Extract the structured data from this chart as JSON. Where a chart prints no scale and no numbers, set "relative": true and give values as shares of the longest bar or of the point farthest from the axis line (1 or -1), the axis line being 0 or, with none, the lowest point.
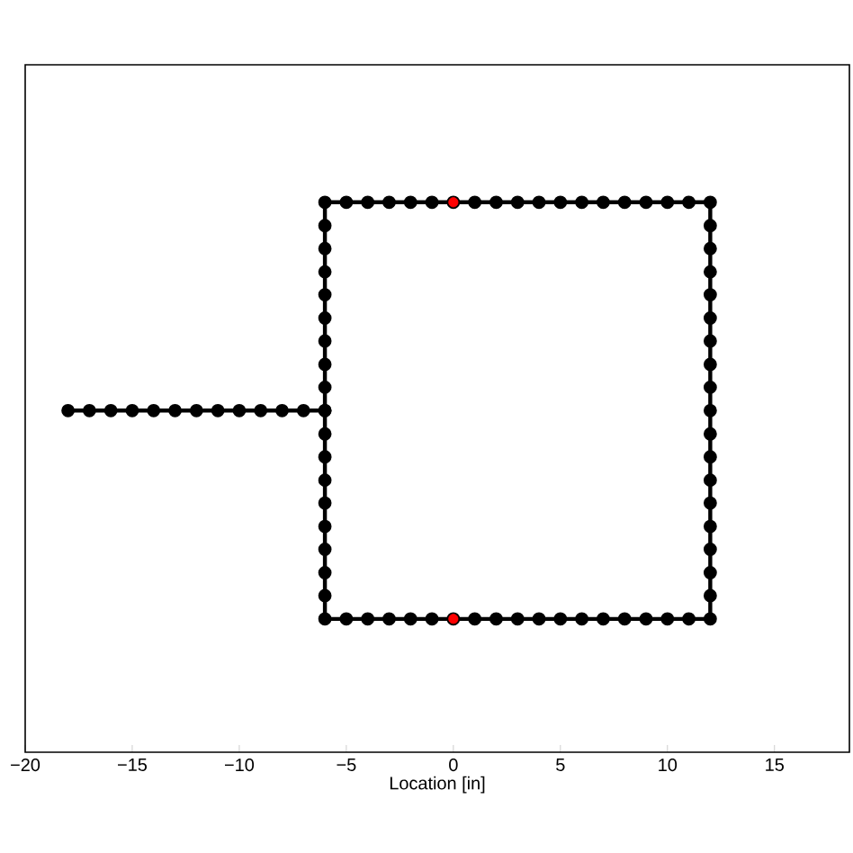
{
  "chart_data": {
    "type": "line",
    "xlabel": "Location [in]",
    "relative": true,
    "xlim": [
      -20,
      18.5
    ],
    "xticks": [
      {
        "value": -20,
        "label": "−20"
      },
      {
        "value": -15,
        "label": "−15"
      },
      {
        "value": -10,
        "label": "−10"
      },
      {
        "value": -5,
        "label": "−5"
      },
      0,
      5,
      10,
      15
    ],
    "marker": "circle",
    "line_style": "solid",
    "series": [
      {
        "color": "#000000",
        "x": [
          -18,
          -17,
          -16,
          -15,
          -14,
          -13,
          -12,
          -11,
          -10,
          -9,
          -8,
          -7,
          -6,
          -6,
          -6,
          -6,
          -6,
          -6,
          -6,
          -6,
          -6,
          -6,
          -5,
          -4,
          -3,
          -2,
          -1,
          0,
          1,
          2,
          3,
          4,
          5,
          6,
          7,
          8,
          9,
          10,
          11,
          12,
          12,
          12,
          12,
          12,
          12,
          12,
          12,
          12,
          12,
          12,
          12,
          12,
          12,
          12,
          12,
          12,
          12,
          12,
          11,
          10,
          9,
          8,
          7,
          6,
          5,
          4,
          3,
          2,
          1,
          0,
          -1,
          -2,
          -3,
          -4,
          -5,
          -6,
          -6,
          -6,
          -6,
          -6,
          -6,
          -6,
          -6,
          -6,
          -6
        ],
        "values": [
          0.5,
          0.5,
          0.5,
          0.5,
          0.5,
          0.5,
          0.5,
          0.5,
          0.5,
          0.5,
          0.5,
          0.5,
          0.5,
          0.556,
          0.611,
          0.667,
          0.722,
          0.778,
          0.833,
          0.889,
          0.944,
          1,
          1,
          1,
          1,
          1,
          1,
          1,
          1,
          1,
          1,
          1,
          1,
          1,
          1,
          1,
          1,
          1,
          1,
          1,
          0.944,
          0.889,
          0.833,
          0.778,
          0.722,
          0.667,
          0.611,
          0.556,
          0.5,
          0.444,
          0.389,
          0.333,
          0.278,
          0.222,
          0.167,
          0.111,
          0.056,
          0,
          0,
          0,
          0,
          0,
          0,
          0,
          0,
          0,
          0,
          0,
          0,
          0,
          0,
          0,
          0,
          0,
          0,
          0,
          0.056,
          0.111,
          0.167,
          0.222,
          0.278,
          0.333,
          0.389,
          0.444,
          0.5
        ]
      },
      {
        "type": "scatter",
        "color": "#ff0000",
        "x": [
          0,
          0
        ],
        "values": [
          1,
          0
        ]
      }
    ]
  }
}
